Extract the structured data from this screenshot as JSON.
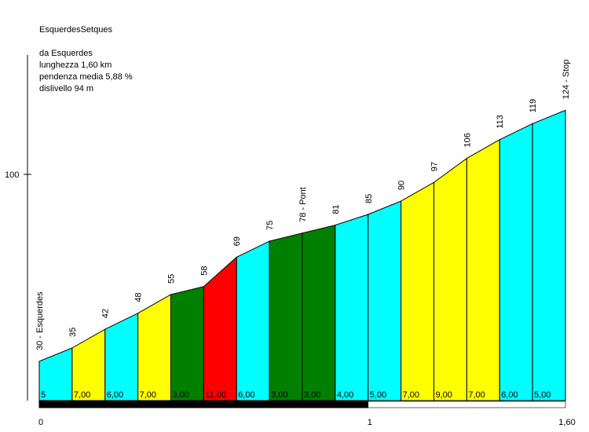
{
  "chart_data": {
    "type": "area",
    "title": "EsquerdesSetques",
    "info": {
      "from": "da Esquerdes",
      "length": "lunghezza 1,60 km",
      "avg_gradient": "pendenza media 5,88 %",
      "elevation_gain": "dislivello 94 m"
    },
    "x_km": [
      0,
      0.1,
      0.2,
      0.3,
      0.4,
      0.5,
      0.6,
      0.7,
      0.8,
      0.9,
      1.0,
      1.1,
      1.2,
      1.3,
      1.4,
      1.5,
      1.6
    ],
    "altitudes": [
      30,
      35,
      42,
      48,
      55,
      58,
      69,
      75,
      78,
      81,
      85,
      90,
      97,
      106,
      113,
      119,
      124
    ],
    "point_labels": [
      "30 - Esquerdes",
      "35",
      "42",
      "48",
      "55",
      "58",
      "69",
      "75",
      "78 - Pont",
      "81",
      "85",
      "90",
      "97",
      "106",
      "113",
      "119",
      "124 - Stop"
    ],
    "segment_gradients": [
      "5",
      "7,00",
      "6,00",
      "7,00",
      "3,00",
      "11,00",
      "6,00",
      "3,00",
      "3,00",
      "4,00",
      "5,00",
      "7,00",
      "9,00",
      "7,00",
      "6,00",
      "5,00"
    ],
    "segment_colors": [
      "#00ffff",
      "#ffff00",
      "#00ffff",
      "#ffff00",
      "#007f00",
      "#ff0000",
      "#00ffff",
      "#007f00",
      "#007f00",
      "#00ffff",
      "#00ffff",
      "#ffff00",
      "#ffff00",
      "#ffff00",
      "#00ffff",
      "#00ffff"
    ],
    "y_ticks": [
      {
        "value": 100,
        "label": "100"
      }
    ],
    "x_ticks": [
      {
        "value": 0,
        "label": "0"
      },
      {
        "value": 1,
        "label": "1"
      },
      {
        "value": 1.6,
        "label": "1,60"
      }
    ],
    "ylim": [
      20,
      148
    ],
    "xlim": [
      0,
      1.6
    ],
    "colors": {
      "axis": "#000000",
      "bar_dark": "#000000",
      "bar_light": "#ffffff"
    }
  }
}
